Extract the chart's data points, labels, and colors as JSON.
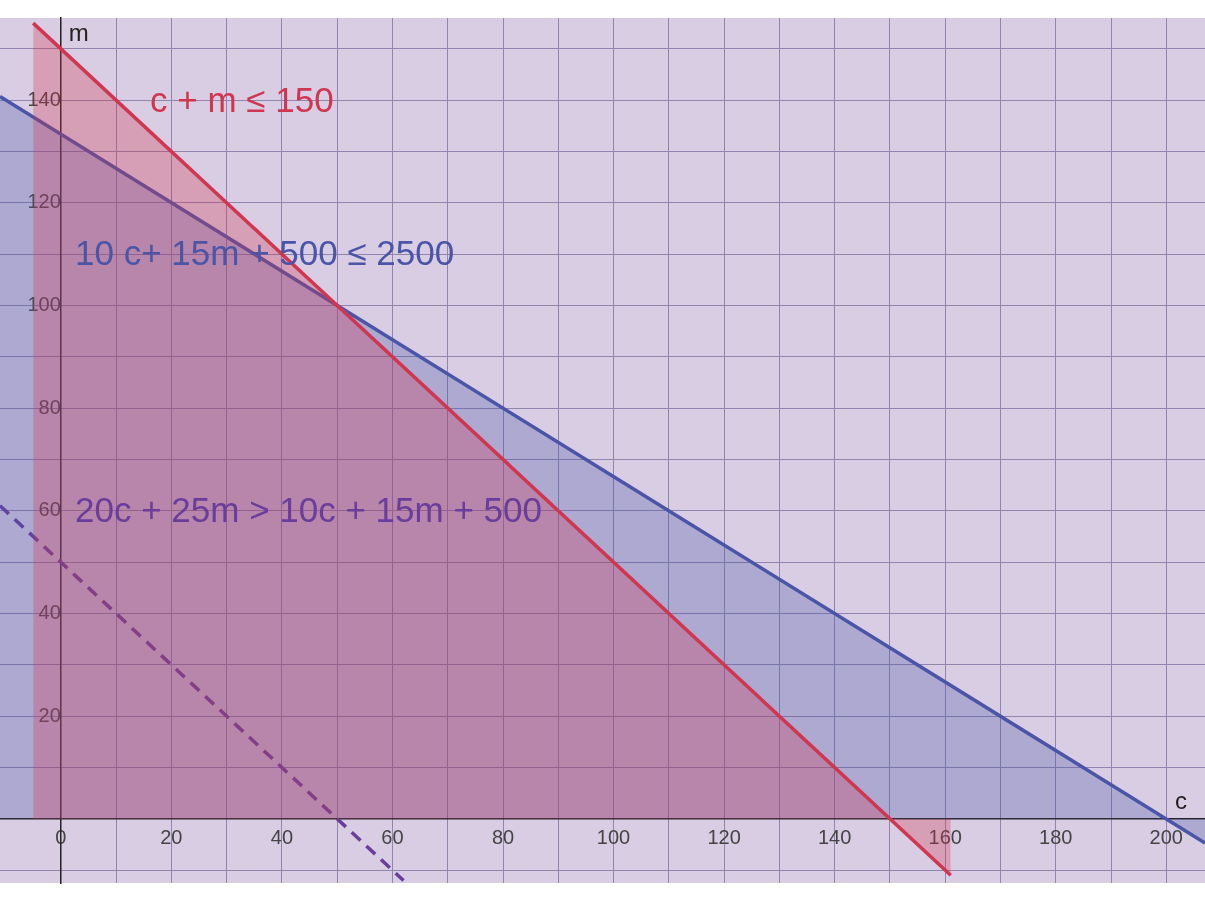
{
  "chart_data": {
    "type": "line",
    "xlabel": "c",
    "ylabel": "m",
    "xlim": [
      -11,
      207
    ],
    "ylim": [
      -12.5,
      156
    ],
    "xticks": [
      0,
      {
        "value": 10,
        "label": null
      },
      20,
      {
        "value": 30,
        "label": null
      },
      40,
      {
        "value": 50,
        "label": null
      },
      60,
      {
        "value": 70,
        "label": null
      },
      80,
      {
        "value": 90,
        "label": null
      },
      100,
      {
        "value": 110,
        "label": null
      },
      120,
      {
        "value": 130,
        "label": null
      },
      140,
      {
        "value": 150,
        "label": null
      },
      160,
      {
        "value": 170,
        "label": null
      },
      180,
      {
        "value": 190,
        "label": null
      },
      200
    ],
    "yticks": [
      {
        "value": -10,
        "label": null
      },
      {
        "value": 10,
        "label": null
      },
      20,
      {
        "value": 30,
        "label": null
      },
      40,
      {
        "value": 50,
        "label": null
      },
      60,
      {
        "value": 70,
        "label": null
      },
      80,
      {
        "value": 90,
        "label": null
      },
      100,
      {
        "value": 110,
        "label": null
      },
      120,
      {
        "value": 130,
        "label": null
      },
      140,
      {
        "value": 150,
        "label": null
      }
    ],
    "grid": true,
    "series": [
      {
        "type": "area",
        "color": "#d0364f",
        "x": [
          -5,
          161
        ],
        "values": [
          155,
          -11
        ]
      },
      {
        "type": "area",
        "color": "#4a55a8",
        "x": [
          -11,
          207
        ],
        "values": [
          140.7,
          -4.7
        ]
      },
      {
        "type": "line",
        "line_style": "dashed",
        "color": "#6a3c9c",
        "x": [
          -11,
          62
        ],
        "values": [
          61,
          -12
        ]
      }
    ],
    "annotations": [
      "c + m ≤ 150",
      "10 c+ 15m + 500 ≤ 2500",
      "20c + 25m > 10c + 15m + 500"
    ]
  }
}
